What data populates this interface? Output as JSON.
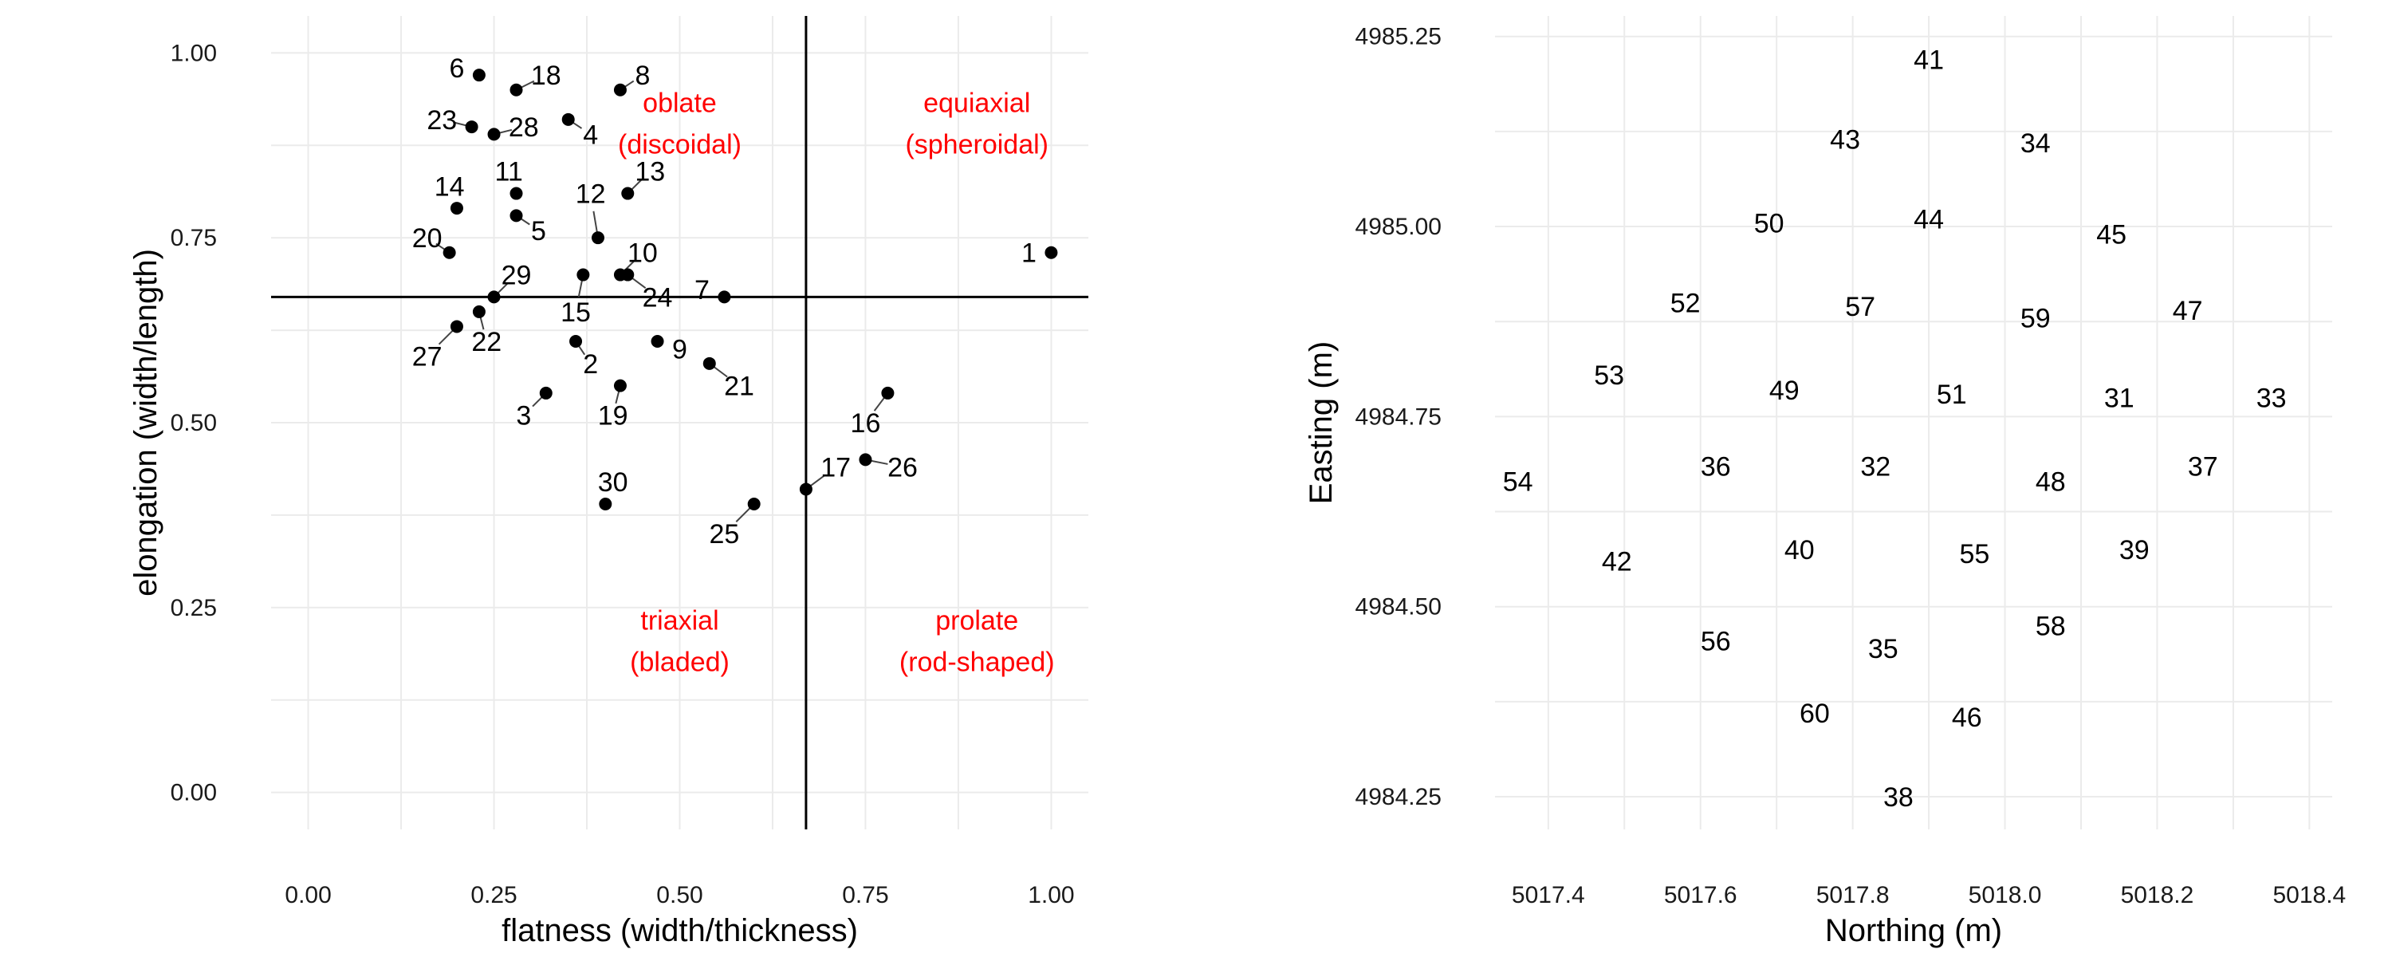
{
  "colors": {
    "point": "#000000",
    "annotation": "#ff0000",
    "grid": "#ebebeb"
  },
  "chart_data": [
    {
      "type": "scatter",
      "xlabel": "flatness (width/thickness)",
      "ylabel": "elongation (width/length)",
      "xlim": [
        -0.05,
        1.05
      ],
      "ylim": [
        -0.05,
        1.05
      ],
      "xticks": [
        "0.00",
        "0.25",
        "0.50",
        "0.75",
        "1.00"
      ],
      "yticks": [
        "0.00",
        "0.25",
        "0.50",
        "0.75",
        "1.00"
      ],
      "grid": true,
      "reference_lines": {
        "vertical_x": 0.67,
        "horizontal_y": 0.67
      },
      "regions": [
        {
          "line1": "oblate",
          "line2": "(discoidal)",
          "x": 0.5,
          "y": 0.92
        },
        {
          "line1": "equiaxial",
          "line2": "(spheroidal)",
          "x": 0.9,
          "y": 0.92
        },
        {
          "line1": "triaxial",
          "line2": "(bladed)",
          "x": 0.5,
          "y": 0.22
        },
        {
          "line1": "prolate",
          "line2": "(rod-shaped)",
          "x": 0.9,
          "y": 0.22
        }
      ],
      "points": [
        {
          "label": "1",
          "x": 1.0,
          "y": 0.73,
          "lx": 0.97,
          "ly": 0.73
        },
        {
          "label": "2",
          "x": 0.36,
          "y": 0.61,
          "lx": 0.38,
          "ly": 0.58
        },
        {
          "label": "3",
          "x": 0.32,
          "y": 0.54,
          "lx": 0.29,
          "ly": 0.51
        },
        {
          "label": "4",
          "x": 0.35,
          "y": 0.91,
          "lx": 0.38,
          "ly": 0.89
        },
        {
          "label": "5",
          "x": 0.28,
          "y": 0.78,
          "lx": 0.31,
          "ly": 0.76
        },
        {
          "label": "6",
          "x": 0.23,
          "y": 0.97,
          "lx": 0.2,
          "ly": 0.98
        },
        {
          "label": "7",
          "x": 0.56,
          "y": 0.67,
          "lx": 0.53,
          "ly": 0.68
        },
        {
          "label": "8",
          "x": 0.42,
          "y": 0.95,
          "lx": 0.45,
          "ly": 0.97
        },
        {
          "label": "9",
          "x": 0.47,
          "y": 0.61,
          "lx": 0.5,
          "ly": 0.6
        },
        {
          "label": "10",
          "x": 0.42,
          "y": 0.7,
          "lx": 0.45,
          "ly": 0.73
        },
        {
          "label": "11",
          "x": 0.28,
          "y": 0.81,
          "lx": 0.27,
          "ly": 0.84
        },
        {
          "label": "12",
          "x": 0.39,
          "y": 0.75,
          "lx": 0.38,
          "ly": 0.81
        },
        {
          "label": "13",
          "x": 0.43,
          "y": 0.81,
          "lx": 0.46,
          "ly": 0.84
        },
        {
          "label": "14",
          "x": 0.2,
          "y": 0.79,
          "lx": 0.19,
          "ly": 0.82
        },
        {
          "label": "15",
          "x": 0.37,
          "y": 0.7,
          "lx": 0.36,
          "ly": 0.65
        },
        {
          "label": "16",
          "x": 0.78,
          "y": 0.54,
          "lx": 0.75,
          "ly": 0.5
        },
        {
          "label": "17",
          "x": 0.67,
          "y": 0.41,
          "lx": 0.71,
          "ly": 0.44
        },
        {
          "label": "18",
          "x": 0.28,
          "y": 0.95,
          "lx": 0.32,
          "ly": 0.97
        },
        {
          "label": "19",
          "x": 0.42,
          "y": 0.55,
          "lx": 0.41,
          "ly": 0.51
        },
        {
          "label": "20",
          "x": 0.19,
          "y": 0.73,
          "lx": 0.16,
          "ly": 0.75
        },
        {
          "label": "21",
          "x": 0.54,
          "y": 0.58,
          "lx": 0.58,
          "ly": 0.55
        },
        {
          "label": "22",
          "x": 0.23,
          "y": 0.65,
          "lx": 0.24,
          "ly": 0.61
        },
        {
          "label": "23",
          "x": 0.22,
          "y": 0.9,
          "lx": 0.18,
          "ly": 0.91
        },
        {
          "label": "24",
          "x": 0.43,
          "y": 0.7,
          "lx": 0.47,
          "ly": 0.67
        },
        {
          "label": "25",
          "x": 0.6,
          "y": 0.39,
          "lx": 0.56,
          "ly": 0.35
        },
        {
          "label": "26",
          "x": 0.75,
          "y": 0.45,
          "lx": 0.8,
          "ly": 0.44
        },
        {
          "label": "27",
          "x": 0.2,
          "y": 0.63,
          "lx": 0.16,
          "ly": 0.59
        },
        {
          "label": "28",
          "x": 0.25,
          "y": 0.89,
          "lx": 0.29,
          "ly": 0.9
        },
        {
          "label": "29",
          "x": 0.25,
          "y": 0.67,
          "lx": 0.28,
          "ly": 0.7
        },
        {
          "label": "30",
          "x": 0.4,
          "y": 0.39,
          "lx": 0.41,
          "ly": 0.42
        }
      ]
    },
    {
      "type": "scatter",
      "xlabel": "Northing (m)",
      "ylabel": "Easting (m)",
      "xlim": [
        5017.33,
        5018.43
      ],
      "ylim": [
        4984.207,
        4985.277
      ],
      "xticks": [
        "5017.4",
        "5017.6",
        "5017.8",
        "5018.0",
        "5018.2",
        "5018.4"
      ],
      "yticks": [
        "4984.25",
        "4984.50",
        "4984.75",
        "4985.00",
        "4985.25"
      ],
      "grid": true,
      "points": [
        {
          "label": "31",
          "x": 5018.15,
          "y": 4984.775
        },
        {
          "label": "32",
          "x": 5017.83,
          "y": 4984.685
        },
        {
          "label": "33",
          "x": 5018.35,
          "y": 4984.775
        },
        {
          "label": "34",
          "x": 5018.04,
          "y": 4985.11
        },
        {
          "label": "35",
          "x": 5017.84,
          "y": 4984.445
        },
        {
          "label": "36",
          "x": 5017.62,
          "y": 4984.685
        },
        {
          "label": "37",
          "x": 5018.26,
          "y": 4984.685
        },
        {
          "label": "38",
          "x": 5017.86,
          "y": 4984.25
        },
        {
          "label": "39",
          "x": 5018.17,
          "y": 4984.575
        },
        {
          "label": "40",
          "x": 5017.73,
          "y": 4984.575
        },
        {
          "label": "41",
          "x": 5017.9,
          "y": 4985.22
        },
        {
          "label": "42",
          "x": 5017.49,
          "y": 4984.56
        },
        {
          "label": "43",
          "x": 5017.79,
          "y": 4985.115
        },
        {
          "label": "44",
          "x": 5017.9,
          "y": 4985.01
        },
        {
          "label": "45",
          "x": 5018.14,
          "y": 4984.99
        },
        {
          "label": "46",
          "x": 5017.95,
          "y": 4984.355
        },
        {
          "label": "47",
          "x": 5018.24,
          "y": 4984.89
        },
        {
          "label": "48",
          "x": 5018.06,
          "y": 4984.665
        },
        {
          "label": "49",
          "x": 5017.71,
          "y": 4984.785
        },
        {
          "label": "50",
          "x": 5017.69,
          "y": 4985.005
        },
        {
          "label": "51",
          "x": 5017.93,
          "y": 4984.78
        },
        {
          "label": "52",
          "x": 5017.58,
          "y": 4984.9
        },
        {
          "label": "53",
          "x": 5017.48,
          "y": 4984.805
        },
        {
          "label": "54",
          "x": 5017.36,
          "y": 4984.665
        },
        {
          "label": "55",
          "x": 5017.96,
          "y": 4984.57
        },
        {
          "label": "56",
          "x": 5017.62,
          "y": 4984.455
        },
        {
          "label": "57",
          "x": 5017.81,
          "y": 4984.895
        },
        {
          "label": "58",
          "x": 5018.06,
          "y": 4984.475
        },
        {
          "label": "59",
          "x": 5018.04,
          "y": 4984.88
        },
        {
          "label": "60",
          "x": 5017.75,
          "y": 4984.36
        }
      ]
    }
  ]
}
